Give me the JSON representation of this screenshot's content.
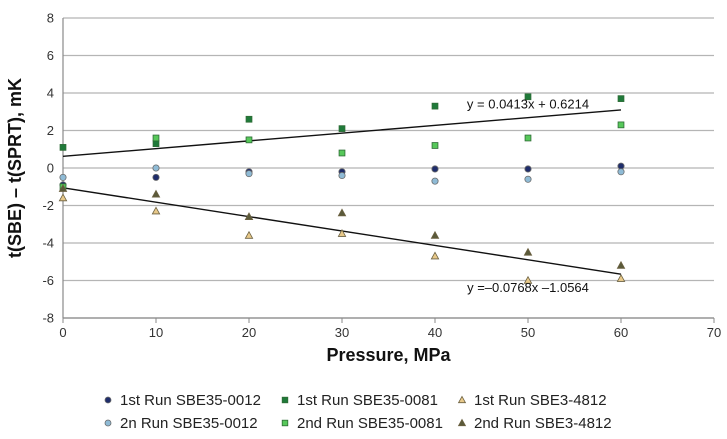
{
  "chart_data": {
    "type": "scatter",
    "title": "",
    "xlabel": "Pressure, MPa",
    "ylabel": "t(SBE) – t(SPRT), mK",
    "xlim": [
      0,
      70
    ],
    "ylim": [
      -8,
      8
    ],
    "xticks": [
      0,
      10,
      20,
      30,
      40,
      50,
      60,
      70
    ],
    "yticks": [
      -8,
      -6,
      -4,
      -2,
      0,
      2,
      4,
      6,
      8
    ],
    "grid": "horizontal",
    "legend_position": "bottom",
    "series": [
      {
        "name": "1st Run SBE35-0012",
        "marker": "circle",
        "color": "#1f2d6b",
        "x": [
          0,
          10,
          20,
          30,
          40,
          50,
          60
        ],
        "y": [
          -0.9,
          -0.5,
          -0.2,
          -0.2,
          -0.05,
          -0.05,
          0.1
        ]
      },
      {
        "name": "2n Run SBE35-0012",
        "marker": "circle",
        "color": "#8fbbd6",
        "x": [
          0,
          10,
          20,
          30,
          40,
          50,
          60
        ],
        "y": [
          -0.5,
          0.0,
          -0.3,
          -0.4,
          -0.7,
          -0.6,
          -0.2
        ]
      },
      {
        "name": "1st Run SBE35-0081",
        "marker": "square",
        "color": "#1f7a3a",
        "x": [
          0,
          10,
          20,
          30,
          40,
          50,
          60
        ],
        "y": [
          1.1,
          1.3,
          2.6,
          2.1,
          3.3,
          3.8,
          3.7
        ]
      },
      {
        "name": "2nd Run SBE35-0081",
        "marker": "square",
        "color": "#57c85a",
        "x": [
          0,
          10,
          20,
          30,
          40,
          50,
          60
        ],
        "y": [
          -1.0,
          1.6,
          1.5,
          0.8,
          1.2,
          1.6,
          2.3
        ]
      },
      {
        "name": "1st Run SBE3-4812",
        "marker": "triangle",
        "color": "#e8c98a",
        "x": [
          0,
          10,
          20,
          30,
          40,
          50,
          60
        ],
        "y": [
          -1.6,
          -2.3,
          -3.6,
          -3.5,
          -4.7,
          -6.0,
          -5.9
        ]
      },
      {
        "name": "2nd Run SBE3-4812",
        "marker": "triangle",
        "color": "#5a5a3a",
        "x": [
          0,
          10,
          20,
          30,
          40,
          50,
          60
        ],
        "y": [
          -1.1,
          -1.4,
          -2.6,
          -2.4,
          -3.6,
          -4.5,
          -5.2
        ]
      }
    ],
    "trendlines": [
      {
        "label": "y = 0.0413x + 0.6214",
        "slope": 0.0413,
        "intercept": 0.6214,
        "x_range": [
          0,
          60
        ],
        "label_at": [
          50,
          3.4
        ]
      },
      {
        "label": "y =–0.0768x –1.0564",
        "slope": -0.0768,
        "intercept": -1.0564,
        "x_range": [
          0,
          60
        ],
        "label_at": [
          50,
          -6.4
        ]
      }
    ],
    "legend": [
      "1st Run SBE35-0012",
      "1st Run SBE35-0081",
      "1st Run SBE3-4812",
      "2n Run SBE35-0012",
      "2nd Run SBE35-0081",
      "2nd Run SBE3-4812"
    ]
  }
}
